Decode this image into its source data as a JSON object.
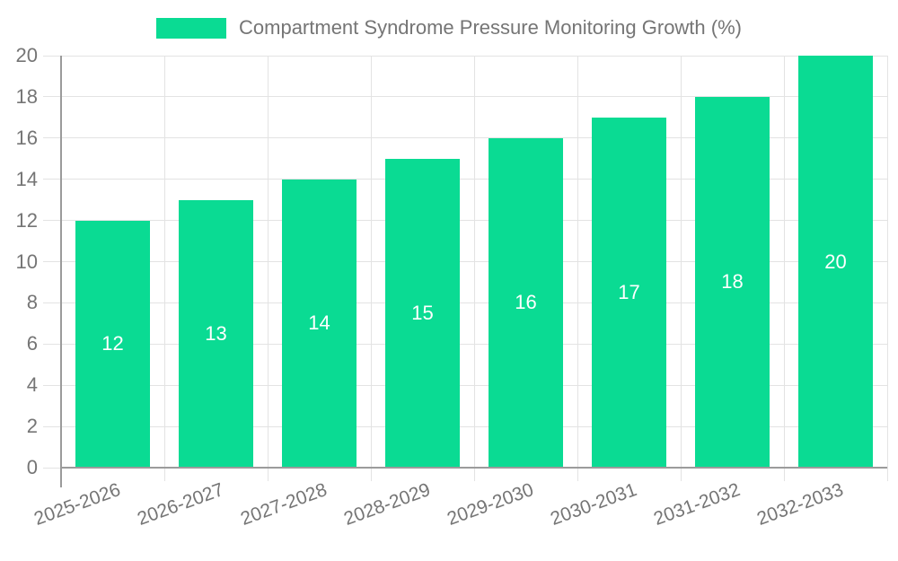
{
  "colors": {
    "bar": "#0adb93",
    "grid": "#e3e3e3",
    "axis": "#9b9b9b",
    "text": "#757575",
    "bar_label": "#ffffff",
    "background": "#ffffff"
  },
  "legend": {
    "label": "Compartment Syndrome Pressure Monitoring Growth (%)"
  },
  "chart_data": {
    "type": "bar",
    "title": "Compartment Syndrome Pressure Monitoring Growth (%)",
    "categories": [
      "2025-2026",
      "2026-2027",
      "2027-2028",
      "2028-2029",
      "2029-2030",
      "2030-2031",
      "2031-2032",
      "2032-2033"
    ],
    "values": [
      12,
      13,
      14,
      15,
      16,
      17,
      18,
      20
    ],
    "series_name": "Compartment Syndrome Pressure Monitoring Growth (%)",
    "xlabel": "",
    "ylabel": "",
    "ylim": [
      0,
      20
    ],
    "yticks": [
      0,
      2,
      4,
      6,
      8,
      10,
      12,
      14,
      16,
      18,
      20
    ],
    "grid": true,
    "legend_position": "top-center",
    "bar_labels": "inside-center"
  }
}
